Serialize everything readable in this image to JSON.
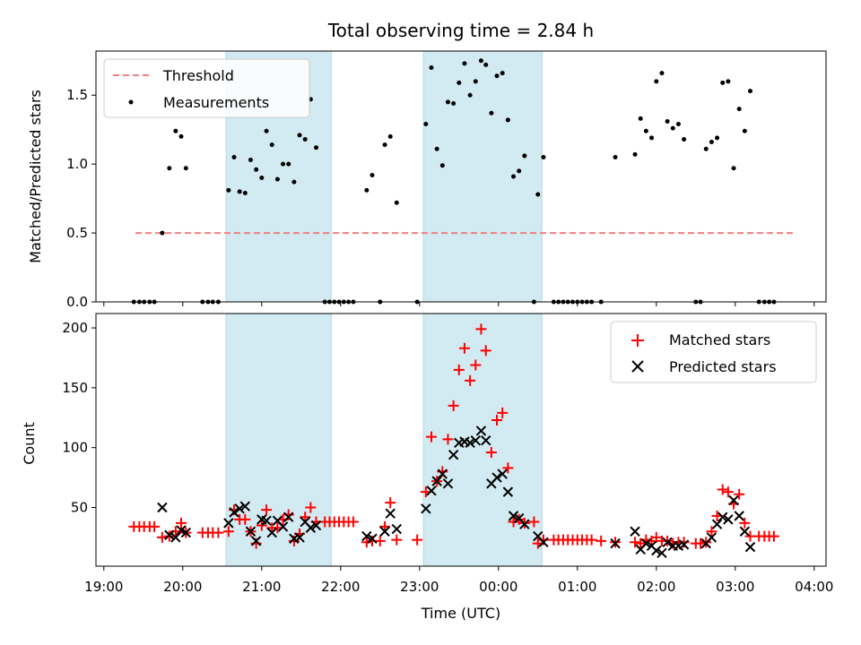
{
  "title": "Total observing time = 2.84 h",
  "chart_data": [
    {
      "type": "scatter",
      "ylabel": "Matched/Predicted stars",
      "xlim": [
        -0.1,
        9.15
      ],
      "ylim": [
        0,
        1.82
      ],
      "yticks": [
        0.0,
        0.5,
        1.0,
        1.5
      ],
      "ytick_labels": [
        "0.0",
        "0.5",
        "1.0",
        "1.5"
      ],
      "shaded_regions": [
        [
          1.55,
          2.88
        ],
        [
          4.05,
          5.55
        ]
      ],
      "shade_color": "#add8e6",
      "legend": {
        "placement": "upper-left",
        "threshold_label": "Threshold",
        "measurements_label": "Measurements"
      },
      "threshold": {
        "name": "Threshold",
        "value": 0.5,
        "x_range": [
          0.4,
          8.75
        ],
        "color": "#f08080"
      },
      "measurements": {
        "name": "Measurements",
        "color": "#000000",
        "points": [
          [
            0.38,
            0
          ],
          [
            0.45,
            0
          ],
          [
            0.51,
            0
          ],
          [
            0.58,
            0
          ],
          [
            0.64,
            0
          ],
          [
            0.74,
            0.5
          ],
          [
            0.83,
            0.97
          ],
          [
            0.91,
            1.24
          ],
          [
            0.98,
            1.2
          ],
          [
            1.04,
            0.97
          ],
          [
            1.25,
            0
          ],
          [
            1.32,
            0
          ],
          [
            1.38,
            0
          ],
          [
            1.45,
            0
          ],
          [
            1.58,
            0.81
          ],
          [
            1.65,
            1.05
          ],
          [
            1.72,
            0.8
          ],
          [
            1.79,
            0.79
          ],
          [
            1.86,
            1.03
          ],
          [
            1.93,
            0.96
          ],
          [
            2.0,
            0.9
          ],
          [
            2.06,
            1.24
          ],
          [
            2.13,
            1.14
          ],
          [
            2.2,
            0.89
          ],
          [
            2.27,
            1.0
          ],
          [
            2.34,
            1.0
          ],
          [
            2.41,
            0.87
          ],
          [
            2.48,
            1.21
          ],
          [
            2.55,
            1.18
          ],
          [
            2.62,
            1.47
          ],
          [
            2.69,
            1.12
          ],
          [
            2.8,
            0
          ],
          [
            2.86,
            0
          ],
          [
            2.92,
            0
          ],
          [
            2.98,
            0
          ],
          [
            3.04,
            0
          ],
          [
            3.1,
            0
          ],
          [
            3.16,
            0
          ],
          [
            3.33,
            0.81
          ],
          [
            3.4,
            0.92
          ],
          [
            3.5,
            0
          ],
          [
            3.56,
            1.14
          ],
          [
            3.63,
            1.2
          ],
          [
            3.71,
            0.72
          ],
          [
            3.97,
            0
          ],
          [
            4.08,
            1.29
          ],
          [
            4.15,
            1.7
          ],
          [
            4.22,
            1.11
          ],
          [
            4.29,
            0.99
          ],
          [
            4.36,
            1.45
          ],
          [
            4.43,
            1.44
          ],
          [
            4.5,
            1.59
          ],
          [
            4.57,
            1.73
          ],
          [
            4.64,
            1.5
          ],
          [
            4.71,
            1.6
          ],
          [
            4.78,
            1.75
          ],
          [
            4.84,
            1.72
          ],
          [
            4.91,
            1.37
          ],
          [
            4.98,
            1.64
          ],
          [
            5.05,
            1.66
          ],
          [
            5.12,
            1.32
          ],
          [
            5.19,
            0.91
          ],
          [
            5.26,
            0.95
          ],
          [
            5.33,
            1.06
          ],
          [
            5.45,
            0
          ],
          [
            5.5,
            0.78
          ],
          [
            5.57,
            1.05
          ],
          [
            5.7,
            0
          ],
          [
            5.76,
            0
          ],
          [
            5.82,
            0
          ],
          [
            5.88,
            0
          ],
          [
            5.94,
            0
          ],
          [
            6.0,
            0
          ],
          [
            6.06,
            0
          ],
          [
            6.12,
            0
          ],
          [
            6.18,
            0
          ],
          [
            6.3,
            0
          ],
          [
            6.48,
            1.05
          ],
          [
            6.73,
            1.07
          ],
          [
            6.8,
            1.33
          ],
          [
            6.87,
            1.24
          ],
          [
            6.94,
            1.19
          ],
          [
            7.0,
            1.6
          ],
          [
            7.07,
            1.66
          ],
          [
            7.14,
            1.31
          ],
          [
            7.21,
            1.26
          ],
          [
            7.28,
            1.29
          ],
          [
            7.35,
            1.18
          ],
          [
            7.5,
            0
          ],
          [
            7.56,
            0
          ],
          [
            7.63,
            1.11
          ],
          [
            7.7,
            1.16
          ],
          [
            7.77,
            1.19
          ],
          [
            7.84,
            1.59
          ],
          [
            7.91,
            1.6
          ],
          [
            7.98,
            0.97
          ],
          [
            8.05,
            1.4
          ],
          [
            8.12,
            1.24
          ],
          [
            8.19,
            1.53
          ],
          [
            8.3,
            0
          ],
          [
            8.37,
            0
          ],
          [
            8.43,
            0
          ],
          [
            8.49,
            0
          ]
        ]
      }
    },
    {
      "type": "scatter",
      "xlabel": "Time (UTC)",
      "ylabel": "Count",
      "xlim": [
        -0.1,
        9.15
      ],
      "ylim": [
        1,
        212
      ],
      "yticks": [
        50,
        100,
        150,
        200
      ],
      "ytick_labels": [
        "50",
        "100",
        "150",
        "200"
      ],
      "xticks": [
        0,
        1,
        2,
        3,
        4,
        5,
        6,
        7,
        8,
        9
      ],
      "xtick_labels": [
        "19:00",
        "20:00",
        "21:00",
        "22:00",
        "23:00",
        "00:00",
        "01:00",
        "02:00",
        "03:00",
        "04:00"
      ],
      "shaded_regions": [
        [
          1.55,
          2.88
        ],
        [
          4.05,
          5.55
        ]
      ],
      "shade_color": "#add8e6",
      "legend": {
        "placement": "upper-right",
        "matched_label": "Matched stars",
        "predicted_label": "Predicted stars"
      },
      "series": [
        {
          "name": "Matched stars",
          "marker": "+",
          "color": "#ff0000",
          "points": [
            [
              0.38,
              34
            ],
            [
              0.45,
              34
            ],
            [
              0.51,
              34
            ],
            [
              0.58,
              34
            ],
            [
              0.64,
              34
            ],
            [
              0.74,
              25
            ],
            [
              0.83,
              26
            ],
            [
              0.91,
              30
            ],
            [
              0.98,
              37
            ],
            [
              1.04,
              29
            ],
            [
              1.25,
              29
            ],
            [
              1.32,
              29
            ],
            [
              1.38,
              29
            ],
            [
              1.45,
              29
            ],
            [
              1.58,
              30
            ],
            [
              1.65,
              48
            ],
            [
              1.72,
              40
            ],
            [
              1.79,
              40
            ],
            [
              1.86,
              30
            ],
            [
              1.93,
              20
            ],
            [
              2.0,
              35
            ],
            [
              2.06,
              48
            ],
            [
              2.13,
              33
            ],
            [
              2.2,
              33
            ],
            [
              2.27,
              40
            ],
            [
              2.34,
              44
            ],
            [
              2.41,
              22
            ],
            [
              2.48,
              28
            ],
            [
              2.55,
              42
            ],
            [
              2.62,
              50
            ],
            [
              2.69,
              38
            ],
            [
              2.8,
              38
            ],
            [
              2.86,
              38
            ],
            [
              2.92,
              38
            ],
            [
              2.98,
              38
            ],
            [
              3.04,
              38
            ],
            [
              3.1,
              38
            ],
            [
              3.16,
              38
            ],
            [
              3.33,
              21
            ],
            [
              3.4,
              22
            ],
            [
              3.5,
              22
            ],
            [
              3.56,
              34
            ],
            [
              3.63,
              54
            ],
            [
              3.71,
              23
            ],
            [
              3.97,
              23
            ],
            [
              4.08,
              63
            ],
            [
              4.15,
              109
            ],
            [
              4.22,
              72
            ],
            [
              4.29,
              80
            ],
            [
              4.36,
              107
            ],
            [
              4.43,
              135
            ],
            [
              4.5,
              165
            ],
            [
              4.57,
              183
            ],
            [
              4.64,
              156
            ],
            [
              4.71,
              169
            ],
            [
              4.78,
              199
            ],
            [
              4.84,
              181
            ],
            [
              4.91,
              96
            ],
            [
              4.98,
              123
            ],
            [
              5.05,
              129
            ],
            [
              5.12,
              83
            ],
            [
              5.19,
              38
            ],
            [
              5.26,
              40
            ],
            [
              5.33,
              37
            ],
            [
              5.45,
              38
            ],
            [
              5.5,
              20
            ],
            [
              5.57,
              23
            ],
            [
              5.7,
              23
            ],
            [
              5.76,
              23
            ],
            [
              5.82,
              23
            ],
            [
              5.88,
              23
            ],
            [
              5.94,
              23
            ],
            [
              6.0,
              23
            ],
            [
              6.06,
              23
            ],
            [
              6.12,
              23
            ],
            [
              6.18,
              23
            ],
            [
              6.3,
              22
            ],
            [
              6.48,
              21
            ],
            [
              6.73,
              21
            ],
            [
              6.8,
              20
            ],
            [
              6.87,
              23
            ],
            [
              6.94,
              22
            ],
            [
              7.0,
              25
            ],
            [
              7.07,
              22
            ],
            [
              7.14,
              22
            ],
            [
              7.21,
              20
            ],
            [
              7.28,
              21
            ],
            [
              7.35,
              21
            ],
            [
              7.5,
              20
            ],
            [
              7.56,
              20
            ],
            [
              7.63,
              21
            ],
            [
              7.7,
              30
            ],
            [
              7.77,
              43
            ],
            [
              7.84,
              65
            ],
            [
              7.91,
              63
            ],
            [
              7.98,
              53
            ],
            [
              8.05,
              61
            ],
            [
              8.12,
              37
            ],
            [
              8.19,
              26
            ],
            [
              8.3,
              26
            ],
            [
              8.37,
              26
            ],
            [
              8.43,
              26
            ],
            [
              8.49,
              26
            ]
          ]
        },
        {
          "name": "Predicted stars",
          "marker": "x",
          "color": "#000000",
          "points": [
            [
              0.74,
              50
            ],
            [
              0.83,
              27
            ],
            [
              0.91,
              25
            ],
            [
              0.98,
              31
            ],
            [
              1.04,
              29
            ],
            [
              1.58,
              37
            ],
            [
              1.65,
              46
            ],
            [
              1.72,
              49
            ],
            [
              1.79,
              51
            ],
            [
              1.86,
              30
            ],
            [
              1.93,
              22
            ],
            [
              2.0,
              40
            ],
            [
              2.06,
              39
            ],
            [
              2.13,
              29
            ],
            [
              2.2,
              39
            ],
            [
              2.27,
              34
            ],
            [
              2.34,
              42
            ],
            [
              2.41,
              24
            ],
            [
              2.48,
              25
            ],
            [
              2.55,
              38
            ],
            [
              2.62,
              33
            ],
            [
              2.69,
              35
            ],
            [
              3.33,
              26
            ],
            [
              3.4,
              24
            ],
            [
              3.56,
              30
            ],
            [
              3.63,
              45
            ],
            [
              3.71,
              32
            ],
            [
              4.08,
              49
            ],
            [
              4.15,
              64
            ],
            [
              4.22,
              72
            ],
            [
              4.29,
              78
            ],
            [
              4.36,
              70
            ],
            [
              4.43,
              94
            ],
            [
              4.5,
              104
            ],
            [
              4.57,
              105
            ],
            [
              4.64,
              104
            ],
            [
              4.71,
              106
            ],
            [
              4.78,
              114
            ],
            [
              4.84,
              106
            ],
            [
              4.91,
              70
            ],
            [
              4.98,
              75
            ],
            [
              5.05,
              78
            ],
            [
              5.12,
              63
            ],
            [
              5.19,
              43
            ],
            [
              5.26,
              41
            ],
            [
              5.33,
              36
            ],
            [
              5.5,
              26
            ],
            [
              5.57,
              21
            ],
            [
              6.48,
              20
            ],
            [
              6.73,
              30
            ],
            [
              6.8,
              15
            ],
            [
              6.87,
              20
            ],
            [
              6.94,
              18
            ],
            [
              7.0,
              14
            ],
            [
              7.07,
              12
            ],
            [
              7.14,
              21
            ],
            [
              7.21,
              18
            ],
            [
              7.28,
              18
            ],
            [
              7.35,
              19
            ],
            [
              7.63,
              20
            ],
            [
              7.7,
              25
            ],
            [
              7.77,
              36
            ],
            [
              7.84,
              42
            ],
            [
              7.91,
              40
            ],
            [
              7.98,
              56
            ],
            [
              8.05,
              43
            ],
            [
              8.12,
              30
            ],
            [
              8.19,
              17
            ]
          ]
        }
      ]
    }
  ]
}
